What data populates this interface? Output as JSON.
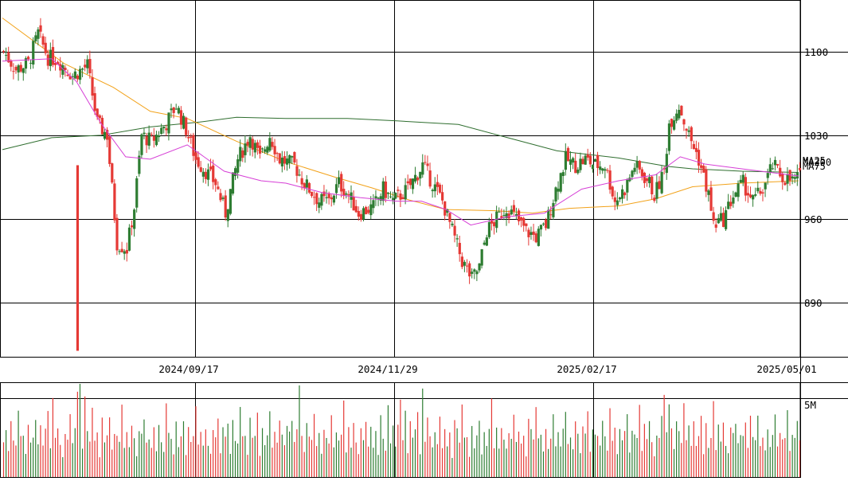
{
  "colors": {
    "up": "#2e7d32",
    "down": "#e53935",
    "ma25": "#d63fd6",
    "ma75": "#f2a21a",
    "ma200": "#2f6e2f",
    "grid": "#000000"
  },
  "y_axis_labels": [
    "1100",
    "1030",
    "960",
    "890"
  ],
  "x_axis_labels": [
    "2024/09/17",
    "2024/11/29",
    "2025/02/17",
    "2025/05/01"
  ],
  "volume_label": "5M",
  "legend": {
    "ma25": "MA25",
    "ma75": "MA75",
    "ma200": "MA200"
  },
  "chart_data": {
    "type": "candlestick",
    "title": "",
    "y_range": [
      845,
      1143
    ],
    "y_ticks": [
      1100,
      1030,
      960,
      890
    ],
    "x_tick_labels": [
      "2024/09/17",
      "2024/11/29",
      "2025/02/17",
      "2025/05/01"
    ],
    "volume_max": 6000000,
    "volume_tick": "5M",
    "volume_tick_value": 5000000,
    "anchors": [
      [
        0,
        1100
      ],
      [
        5,
        1085
      ],
      [
        10,
        1090
      ],
      [
        14,
        1115
      ],
      [
        18,
        1095
      ],
      [
        22,
        1093
      ],
      [
        28,
        1080
      ],
      [
        34,
        1088
      ],
      [
        38,
        1040
      ],
      [
        42,
        1030
      ],
      [
        46,
        940
      ],
      [
        50,
        935
      ],
      [
        53,
        970
      ],
      [
        56,
        1030
      ],
      [
        60,
        1025
      ],
      [
        66,
        1040
      ],
      [
        70,
        1055
      ],
      [
        74,
        1035
      ],
      [
        78,
        1010
      ],
      [
        82,
        1000
      ],
      [
        86,
        990
      ],
      [
        90,
        965
      ],
      [
        95,
        1010
      ],
      [
        100,
        1030
      ],
      [
        104,
        1010
      ],
      [
        108,
        1030
      ],
      [
        112,
        1010
      ],
      [
        118,
        1005
      ],
      [
        122,
        990
      ],
      [
        128,
        975
      ],
      [
        132,
        975
      ],
      [
        136,
        990
      ],
      [
        140,
        980
      ],
      [
        144,
        965
      ],
      [
        150,
        970
      ],
      [
        154,
        985
      ],
      [
        158,
        975
      ],
      [
        164,
        985
      ],
      [
        170,
        1005
      ],
      [
        174,
        990
      ],
      [
        178,
        975
      ],
      [
        182,
        950
      ],
      [
        186,
        925
      ],
      [
        190,
        910
      ],
      [
        193,
        920
      ],
      [
        196,
        950
      ],
      [
        200,
        960
      ],
      [
        204,
        970
      ],
      [
        208,
        960
      ],
      [
        212,
        950
      ],
      [
        216,
        945
      ],
      [
        220,
        955
      ],
      [
        224,
        985
      ],
      [
        228,
        1010
      ],
      [
        232,
        1005
      ],
      [
        236,
        1010
      ],
      [
        240,
        1005
      ],
      [
        244,
        1005
      ],
      [
        248,
        975
      ],
      [
        252,
        985
      ],
      [
        256,
        1005
      ],
      [
        258,
        1000
      ],
      [
        262,
        990
      ],
      [
        264,
        980
      ],
      [
        268,
        1000
      ],
      [
        270,
        1040
      ],
      [
        274,
        1055
      ],
      [
        278,
        1030
      ],
      [
        282,
        1010
      ],
      [
        286,
        980
      ],
      [
        288,
        955
      ],
      [
        292,
        960
      ],
      [
        296,
        980
      ],
      [
        300,
        990
      ],
      [
        304,
        975
      ],
      [
        308,
        985
      ],
      [
        312,
        1005
      ],
      [
        316,
        995
      ],
      [
        320,
        992
      ],
      [
        323,
        995
      ]
    ],
    "volume_pattern": [
      1.8,
      2.6,
      1.2,
      3.1,
      2.2,
      1.5,
      3.8,
      1.9,
      2.4,
      1.1,
      2.9,
      1.6,
      2.1,
      3.4,
      1.3,
      2.7,
      1.8,
      2.2,
      4.1,
      1.4,
      2.5,
      1.7,
      3.0,
      1.9,
      1.2,
      2.6,
      2.0,
      3.3,
      1.5,
      2.3
    ],
    "volume_spikes": [
      [
        20,
        5.0
      ],
      [
        30,
        5.4
      ],
      [
        31,
        5.9
      ],
      [
        33,
        5.1
      ],
      [
        120,
        5.8
      ],
      [
        161,
        4.9
      ],
      [
        163,
        4.2
      ],
      [
        170,
        5.6
      ],
      [
        268,
        5.2
      ],
      [
        270,
        4.6
      ]
    ],
    "ma_series": {
      "ma25": [
        [
          0,
          1092
        ],
        [
          20,
          1094
        ],
        [
          30,
          1075
        ],
        [
          40,
          1040
        ],
        [
          50,
          1012
        ],
        [
          60,
          1010
        ],
        [
          75,
          1022
        ],
        [
          90,
          1000
        ],
        [
          105,
          992
        ],
        [
          115,
          990
        ],
        [
          130,
          982
        ],
        [
          145,
          978
        ],
        [
          160,
          975
        ],
        [
          170,
          975
        ],
        [
          180,
          968
        ],
        [
          190,
          955
        ],
        [
          205,
          962
        ],
        [
          220,
          965
        ],
        [
          225,
          972
        ],
        [
          235,
          985
        ],
        [
          250,
          992
        ],
        [
          265,
          997
        ],
        [
          275,
          1012
        ],
        [
          285,
          1006
        ],
        [
          300,
          1002
        ],
        [
          323,
          996
        ]
      ],
      "ma75": [
        [
          0,
          1128
        ],
        [
          25,
          1090
        ],
        [
          45,
          1070
        ],
        [
          60,
          1050
        ],
        [
          75,
          1044
        ],
        [
          95,
          1025
        ],
        [
          115,
          1008
        ],
        [
          135,
          995
        ],
        [
          150,
          986
        ],
        [
          165,
          976
        ],
        [
          180,
          968
        ],
        [
          200,
          967
        ],
        [
          215,
          965
        ],
        [
          230,
          969
        ],
        [
          250,
          971
        ],
        [
          265,
          977
        ],
        [
          280,
          987
        ],
        [
          300,
          990
        ],
        [
          323,
          992
        ]
      ],
      "ma200": [
        [
          0,
          1018
        ],
        [
          20,
          1028
        ],
        [
          40,
          1030
        ],
        [
          60,
          1037
        ],
        [
          80,
          1041
        ],
        [
          95,
          1045
        ],
        [
          115,
          1044
        ],
        [
          140,
          1044
        ],
        [
          160,
          1042
        ],
        [
          185,
          1039
        ],
        [
          205,
          1028
        ],
        [
          225,
          1017
        ],
        [
          250,
          1011
        ],
        [
          270,
          1004
        ],
        [
          280,
          1002
        ],
        [
          300,
          1000
        ],
        [
          323,
          999
        ]
      ]
    }
  }
}
